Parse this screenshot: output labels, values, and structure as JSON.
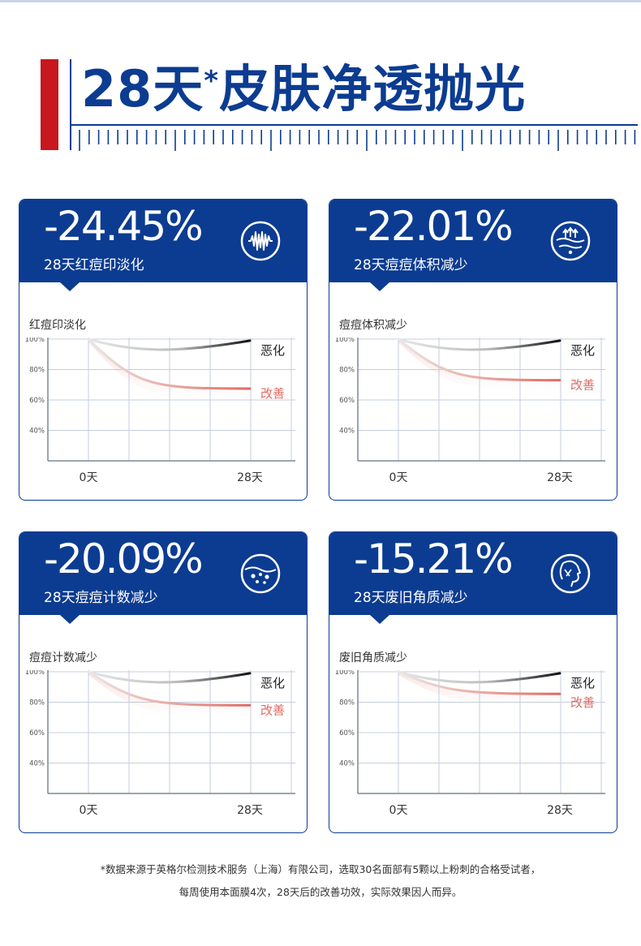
{
  "title": {
    "main": "28天",
    "star": "*",
    "rest": "皮肤净透抛光"
  },
  "icons": [
    "wave-circle-icon",
    "skin-layer-icon",
    "dots-circle-icon",
    "face-profile-icon"
  ],
  "colors": {
    "brand": "#0c3c91",
    "accent_red": "#c8171e",
    "improve": "#e06a62",
    "worsen": "#222222"
  },
  "cards": [
    {
      "pct": "-24.45%",
      "subtitle": "28天红痘印淡化",
      "chart_label": "红痘印淡化",
      "chart_data": {
        "type": "line",
        "x_labels": [
          "0天",
          "28天"
        ],
        "y_ticks": [
          "100%",
          "80%",
          "60%",
          "40%"
        ],
        "ylim": [
          20,
          100
        ],
        "series": [
          {
            "name": "恶化",
            "values": [
              100,
              91.5,
              99
            ]
          },
          {
            "name": "改善",
            "values": [
              100,
              67.5
            ]
          }
        ]
      }
    },
    {
      "pct": "-22.01%",
      "subtitle": "28天痘痘体积减少",
      "chart_label": "痘痘体积减少",
      "chart_data": {
        "type": "line",
        "x_labels": [
          "0天",
          "28天"
        ],
        "y_ticks": [
          "100%",
          "80%",
          "60%",
          "40%"
        ],
        "ylim": [
          20,
          100
        ],
        "series": [
          {
            "name": "恶化",
            "values": [
              100,
              91.5,
              99
            ]
          },
          {
            "name": "改善",
            "values": [
              100,
              73
            ]
          }
        ]
      }
    },
    {
      "pct": "-20.09%",
      "subtitle": "28天痘痘计数减少",
      "chart_label": "痘痘计数减少",
      "chart_data": {
        "type": "line",
        "x_labels": [
          "0天",
          "28天"
        ],
        "y_ticks": [
          "100%",
          "80%",
          "60%",
          "40%"
        ],
        "ylim": [
          20,
          100
        ],
        "series": [
          {
            "name": "恶化",
            "values": [
              100,
              91.5,
              99
            ]
          },
          {
            "name": "改善",
            "values": [
              100,
              78
            ]
          }
        ]
      }
    },
    {
      "pct": "-15.21%",
      "subtitle": "28天废旧角质减少",
      "chart_label": "废旧角质减少",
      "chart_data": {
        "type": "line",
        "x_labels": [
          "0天",
          "28天"
        ],
        "y_ticks": [
          "100%",
          "80%",
          "60%",
          "40%"
        ],
        "ylim": [
          20,
          100
        ],
        "series": [
          {
            "name": "恶化",
            "values": [
              100,
              91.5,
              99
            ]
          },
          {
            "name": "改善",
            "values": [
              100,
              85.5
            ]
          }
        ]
      }
    }
  ],
  "footnote": {
    "line1": "*数据来源于英格尔检测技术服务（上海）有限公司，选取30名面部有5颗以上粉刺的合格受试者，",
    "line2": "每周使用本面膜4次，28天后的改善功效，实际效果因人而异。"
  }
}
